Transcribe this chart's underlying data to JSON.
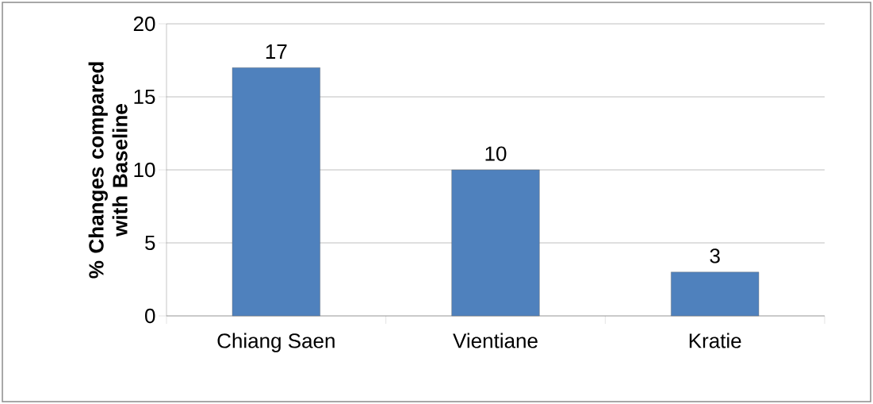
{
  "chart_data": {
    "type": "bar",
    "ylabel": "% Changes compared with Baseline",
    "categories": [
      "Chiang Saen",
      "Vientiane",
      "Kratie"
    ],
    "values": [
      17,
      10,
      3
    ],
    "color": "#4f81bd",
    "data_labels": true,
    "ylim": [
      0,
      20
    ],
    "yticks": [
      0,
      5,
      10,
      15,
      20
    ],
    "grid": "y"
  }
}
